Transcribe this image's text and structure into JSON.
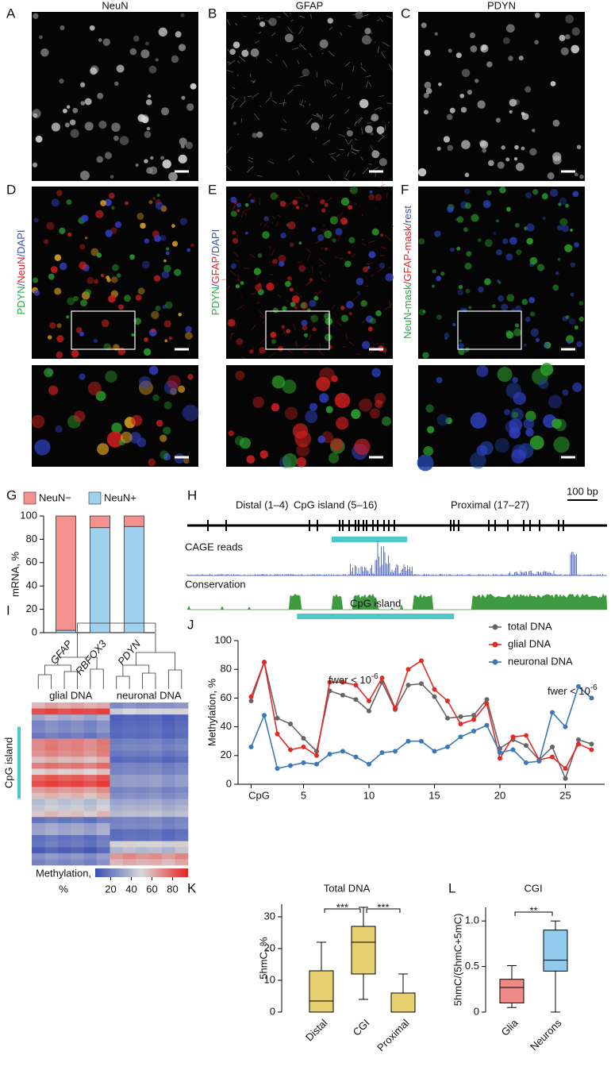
{
  "panel_labels": [
    "A",
    "B",
    "C",
    "D",
    "E",
    "F",
    "G",
    "H",
    "I",
    "J",
    "K",
    "L"
  ],
  "images": [
    {
      "label": "NeuN"
    },
    {
      "label": "GFAP"
    },
    {
      "label": "PDYN"
    }
  ],
  "overlays": [
    {
      "parts": [
        {
          "text": "PDYN",
          "color": "#27a844"
        },
        {
          "text": "/",
          "color": "#3a50b0"
        },
        {
          "text": "NeuN",
          "color": "#e0242a"
        },
        {
          "text": "/",
          "color": "#3a50b0"
        },
        {
          "text": "DAPI",
          "color": "#3a50b0"
        }
      ]
    },
    {
      "parts": [
        {
          "text": "PDYN",
          "color": "#27a844"
        },
        {
          "text": "/",
          "color": "#3a50b0"
        },
        {
          "text": "GFAP",
          "color": "#e0242a"
        },
        {
          "text": "/",
          "color": "#3a50b0"
        },
        {
          "text": "DAPI",
          "color": "#3a50b0"
        }
      ]
    },
    {
      "parts": [
        {
          "text": "NeuN-mask",
          "color": "#27a844"
        },
        {
          "text": "/",
          "color": "#e0242a"
        },
        {
          "text": "GFAP-mask",
          "color": "#e0242a"
        },
        {
          "text": "/",
          "color": "#3a50b0"
        },
        {
          "text": "rest",
          "color": "#3a50b0"
        }
      ]
    }
  ],
  "track": {
    "regions": [
      "Distal (1–4)",
      "CpG island (5–16)",
      "Proximal (17–27)"
    ],
    "scale": "100 bp",
    "tracks": [
      "CAGE reads",
      "Conservation"
    ]
  },
  "chart_data": [
    {
      "type": "stacked_bar",
      "categories": [
        "GFAP",
        "RBFOX3",
        "PDYN"
      ],
      "ylabel": "mRNA, %",
      "series": [
        {
          "name": "NeuN−",
          "color": "#f4918e",
          "values": [
            98,
            10,
            9
          ]
        },
        {
          "name": "NeuN+",
          "color": "#9fd0ee",
          "values": [
            2,
            90,
            91
          ]
        }
      ],
      "ylim": [
        0,
        100
      ],
      "yticks": [
        0,
        20,
        40,
        60,
        80,
        100
      ]
    },
    {
      "type": "heatmap",
      "groups": [
        "glial DNA",
        "neuronal DNA"
      ],
      "row_label": "CpG island",
      "colorbar_label": [
        "Methylation,",
        "%"
      ],
      "colorbar_range": [
        5,
        95
      ],
      "colorbar_ticks": [
        20,
        40,
        60,
        80
      ],
      "colors": [
        "#3a4fb4",
        "#d9d9d9",
        "#e8211e"
      ],
      "values": [
        [
          58,
          64,
          60,
          63,
          59,
          62,
          24,
          28,
          25,
          27,
          26,
          29
        ],
        [
          84,
          87,
          83,
          86,
          85,
          88,
          45,
          50,
          47,
          49,
          48,
          52
        ],
        [
          33,
          38,
          34,
          36,
          32,
          37,
          10,
          12,
          11,
          13,
          9,
          12
        ],
        [
          22,
          26,
          23,
          25,
          21,
          27,
          12,
          14,
          13,
          15,
          11,
          14
        ],
        [
          24,
          28,
          25,
          27,
          23,
          29,
          14,
          16,
          15,
          17,
          13,
          16
        ],
        [
          18,
          22,
          19,
          21,
          17,
          23,
          13,
          15,
          14,
          16,
          12,
          15
        ],
        [
          69,
          73,
          70,
          72,
          68,
          74,
          20,
          22,
          21,
          23,
          19,
          22
        ],
        [
          69,
          74,
          70,
          72,
          68,
          73,
          22,
          24,
          23,
          25,
          21,
          24
        ],
        [
          67,
          71,
          68,
          70,
          66,
          72,
          18,
          20,
          19,
          21,
          17,
          20
        ],
        [
          56,
          60,
          57,
          59,
          55,
          61,
          13,
          15,
          14,
          16,
          12,
          15
        ],
        [
          72,
          76,
          73,
          75,
          71,
          77,
          21,
          23,
          22,
          24,
          20,
          23
        ],
        [
          51,
          55,
          52,
          54,
          50,
          56,
          22,
          24,
          23,
          25,
          21,
          24
        ],
        [
          78,
          82,
          79,
          81,
          77,
          83,
          29,
          31,
          30,
          32,
          28,
          31
        ],
        [
          84,
          88,
          85,
          87,
          83,
          89,
          29,
          31,
          30,
          32,
          28,
          31
        ],
        [
          64,
          68,
          65,
          67,
          63,
          69,
          22,
          24,
          23,
          25,
          21,
          24
        ],
        [
          56,
          60,
          57,
          59,
          55,
          61,
          25,
          27,
          26,
          28,
          24,
          27
        ],
        [
          40,
          44,
          41,
          43,
          39,
          45,
          32,
          34,
          33,
          35,
          31,
          34
        ],
        [
          43,
          47,
          44,
          46,
          42,
          48,
          36,
          38,
          37,
          39,
          35,
          38
        ],
        [
          54,
          58,
          55,
          57,
          53,
          59,
          40,
          42,
          41,
          43,
          39,
          42
        ],
        [
          16,
          20,
          17,
          19,
          15,
          21,
          21,
          23,
          22,
          24,
          20,
          23
        ],
        [
          31,
          35,
          32,
          34,
          30,
          36,
          23,
          25,
          24,
          26,
          22,
          25
        ],
        [
          32,
          36,
          33,
          35,
          31,
          37,
          14,
          16,
          15,
          17,
          13,
          16
        ],
        [
          15,
          19,
          16,
          18,
          14,
          20,
          15,
          17,
          16,
          18,
          14,
          17
        ],
        [
          17,
          21,
          18,
          20,
          16,
          22,
          48,
          52,
          49,
          51,
          47,
          53
        ],
        [
          9,
          13,
          10,
          12,
          8,
          14,
          38,
          42,
          39,
          41,
          37,
          43
        ],
        [
          26,
          30,
          27,
          29,
          25,
          31,
          66,
          70,
          67,
          69,
          65,
          71
        ],
        [
          22,
          26,
          23,
          25,
          21,
          27,
          58,
          62,
          59,
          61,
          57,
          63
        ]
      ]
    },
    {
      "type": "line",
      "ylabel": "Methylation, %",
      "island_label": "CpG island",
      "annotations": [
        {
          "text": "fwer < 10",
          "sup": "-6"
        },
        {
          "text": "fwer < 10",
          "sup": "-6"
        }
      ],
      "x": [
        1,
        2,
        3,
        4,
        5,
        6,
        7,
        8,
        9,
        10,
        11,
        12,
        13,
        14,
        15,
        16,
        17,
        18,
        19,
        20,
        21,
        22,
        23,
        24,
        25,
        26,
        27
      ],
      "series": [
        {
          "name": "total DNA",
          "color": "#666666",
          "values": [
            58,
            85,
            46,
            42,
            32,
            23,
            65,
            62,
            59,
            51,
            71,
            52,
            69,
            70,
            61,
            46,
            47,
            48,
            59,
            25,
            31,
            27,
            17,
            26,
            4,
            31,
            28
          ]
        },
        {
          "name": "glial DNA",
          "color": "#e32b26",
          "values": [
            61,
            85,
            35,
            24,
            26,
            20,
            71,
            71,
            69,
            58,
            74,
            53,
            80,
            86,
            66,
            58,
            42,
            45,
            56,
            18,
            33,
            34,
            17,
            19,
            11,
            28,
            24
          ]
        },
        {
          "name": "neuronal DNA",
          "color": "#3a78b8",
          "values": [
            26,
            48,
            11,
            13,
            15,
            14,
            21,
            23,
            19,
            14,
            22,
            23,
            30,
            30,
            23,
            26,
            33,
            37,
            41,
            22,
            24,
            15,
            16,
            50,
            40,
            68,
            60
          ]
        }
      ],
      "xlim": [
        0,
        28
      ],
      "xticks": [
        {
          "value": 1,
          "label": "CpG"
        },
        5,
        10,
        15,
        20,
        25
      ],
      "ylim": [
        0,
        100
      ],
      "yticks": [
        0,
        20,
        40,
        60,
        80,
        100
      ]
    },
    {
      "type": "box",
      "title": "Total DNA",
      "ylabel": "5hmC, %",
      "categories": [
        "Distal",
        "CGI",
        "Proximal"
      ],
      "color": "#e6cf6e",
      "boxes": [
        {
          "whisker_low": 0,
          "q1": 0,
          "median": 3.5,
          "q3": 13,
          "whisker_high": 22
        },
        {
          "whisker_low": 4,
          "q1": 12,
          "median": 22,
          "q3": 27,
          "whisker_high": 33
        },
        {
          "whisker_low": 0,
          "q1": 0,
          "median": 0,
          "q3": 6,
          "whisker_high": 12
        }
      ],
      "significance": [
        {
          "label": "***"
        },
        {
          "label": "***"
        }
      ],
      "ylim": [
        0,
        34
      ],
      "yticks": [
        0,
        10,
        20,
        30
      ]
    },
    {
      "type": "box",
      "title": "CGI",
      "ylabel": "5hmC/(5hmC+5mC)",
      "categories": [
        "Glia",
        "Neurons"
      ],
      "colors": [
        "#f08a88",
        "#92cbee"
      ],
      "boxes": [
        {
          "whisker_low": 0.05,
          "q1": 0.1,
          "median": 0.27,
          "q3": 0.36,
          "whisker_high": 0.51
        },
        {
          "whisker_low": 0,
          "q1": 0.45,
          "median": 0.57,
          "q3": 0.9,
          "whisker_high": 1.0
        }
      ],
      "significance": [
        {
          "label": "**"
        }
      ],
      "ylim": [
        0,
        1.15
      ],
      "yticks": [
        0,
        0.5,
        {
          "value": 1,
          "label": "1.0"
        }
      ]
    }
  ]
}
